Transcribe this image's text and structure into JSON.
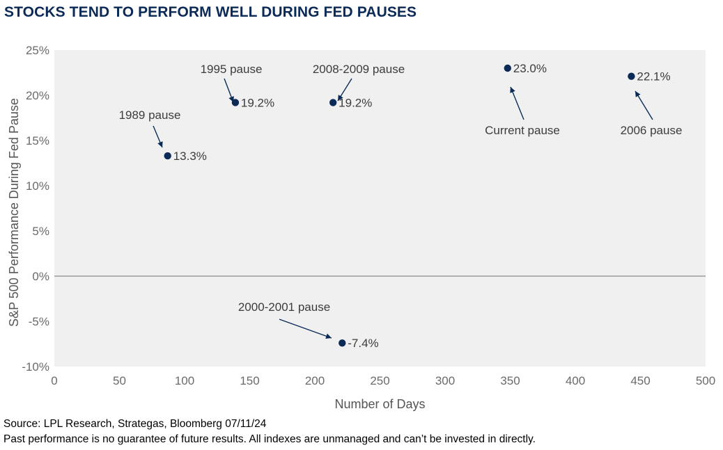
{
  "title": "STOCKS TEND TO PERFORM WELL DURING FED PAUSES",
  "source": "Source: LPL Research, Strategas, Bloomberg 07/11/24",
  "disclaimer": "Past performance is no guarantee of future results. All indexes are unmanaged and can’t be invested in directly.",
  "colors": {
    "marker": "#0b2a56",
    "plot_bg": "#f0f0f0",
    "title": "#0b2a56"
  },
  "chart_data": {
    "type": "scatter",
    "title": "STOCKS TEND TO PERFORM WELL DURING FED PAUSES",
    "xlabel": "Number of Days",
    "ylabel": "S&P 500 Performance During Fed Pause",
    "xlim": [
      0,
      500
    ],
    "ylim": [
      -10,
      25
    ],
    "xticks": [
      0,
      50,
      100,
      150,
      200,
      250,
      300,
      350,
      400,
      450,
      500
    ],
    "yticks": [
      -10,
      -5,
      0,
      5,
      10,
      15,
      20,
      25
    ],
    "ytick_labels": [
      "-10%",
      "-5%",
      "0%",
      "5%",
      "10%",
      "15%",
      "20%",
      "25%"
    ],
    "points": [
      {
        "name": "1989 pause",
        "x": 87,
        "y": 13.3,
        "value_label": "13.3%"
      },
      {
        "name": "1995 pause",
        "x": 139,
        "y": 19.2,
        "value_label": "19.2%"
      },
      {
        "name": "2008-2009 pause",
        "x": 214,
        "y": 19.2,
        "value_label": "19.2%"
      },
      {
        "name": "2000-2001 pause",
        "x": 221,
        "y": -7.4,
        "value_label": "-7.4%"
      },
      {
        "name": "Current pause",
        "x": 348,
        "y": 23.0,
        "value_label": "23.0%"
      },
      {
        "name": "2006 pause",
        "x": 443,
        "y": 22.1,
        "value_label": "22.1%"
      }
    ]
  }
}
